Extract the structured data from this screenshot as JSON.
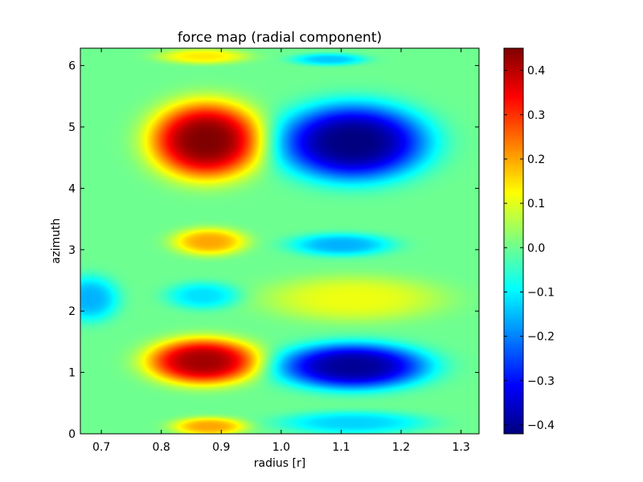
{
  "chart_data": {
    "type": "heatmap",
    "title": "force map (radial component)",
    "xlabel": "radius [r]",
    "ylabel": "azimuth",
    "xlim": [
      0.665,
      1.33
    ],
    "ylim": [
      0,
      6.283
    ],
    "xticks": [
      0.7,
      0.8,
      0.9,
      1.0,
      1.1,
      1.2,
      1.3
    ],
    "xtick_labels": [
      "0.7",
      "0.8",
      "0.9",
      "1.0",
      "1.1",
      "1.2",
      "1.3"
    ],
    "yticks": [
      0,
      1,
      2,
      3,
      4,
      5,
      6
    ],
    "ytick_labels": [
      "0",
      "1",
      "2",
      "3",
      "4",
      "5",
      "6"
    ],
    "colormap": "jet",
    "colorbar": {
      "vmin": -0.42,
      "vmax": 0.45,
      "ticks": [
        -0.4,
        -0.3,
        -0.2,
        -0.1,
        0.0,
        0.1,
        0.2,
        0.3,
        0.4
      ],
      "tick_labels": [
        "−0.4",
        "−0.3",
        "−0.2",
        "−0.1",
        "0.0",
        "0.1",
        "0.2",
        "0.3",
        "0.4"
      ]
    },
    "base_value": 0.0,
    "features": [
      {
        "r": 0.875,
        "phi": 4.78,
        "amp": 0.45,
        "sr": 0.075,
        "sphi": 0.5
      },
      {
        "r": 0.87,
        "phi": 1.18,
        "amp": 0.42,
        "sr": 0.075,
        "sphi": 0.3
      },
      {
        "r": 1.12,
        "phi": 4.75,
        "amp": -0.42,
        "sr": 0.1,
        "sphi": 0.5
      },
      {
        "r": 1.12,
        "phi": 1.1,
        "amp": -0.4,
        "sr": 0.1,
        "sphi": 0.3
      },
      {
        "r": 0.88,
        "phi": 3.13,
        "amp": 0.2,
        "sr": 0.05,
        "sphi": 0.18
      },
      {
        "r": 1.1,
        "phi": 3.08,
        "amp": -0.16,
        "sr": 0.07,
        "sphi": 0.15
      },
      {
        "r": 0.87,
        "phi": 2.25,
        "amp": -0.12,
        "sr": 0.05,
        "sphi": 0.18
      },
      {
        "r": 0.68,
        "phi": 2.2,
        "amp": -0.16,
        "sr": 0.04,
        "sphi": 0.3
      },
      {
        "r": 1.12,
        "phi": 2.2,
        "amp": 0.11,
        "sr": 0.12,
        "sphi": 0.3
      },
      {
        "r": 1.12,
        "phi": 0.18,
        "amp": -0.13,
        "sr": 0.1,
        "sphi": 0.15
      },
      {
        "r": 0.88,
        "phi": 0.12,
        "amp": 0.2,
        "sr": 0.05,
        "sphi": 0.12
      },
      {
        "r": 0.87,
        "phi": 6.15,
        "amp": 0.14,
        "sr": 0.06,
        "sphi": 0.1
      },
      {
        "r": 1.08,
        "phi": 6.1,
        "amp": -0.14,
        "sr": 0.05,
        "sphi": 0.08
      }
    ]
  }
}
